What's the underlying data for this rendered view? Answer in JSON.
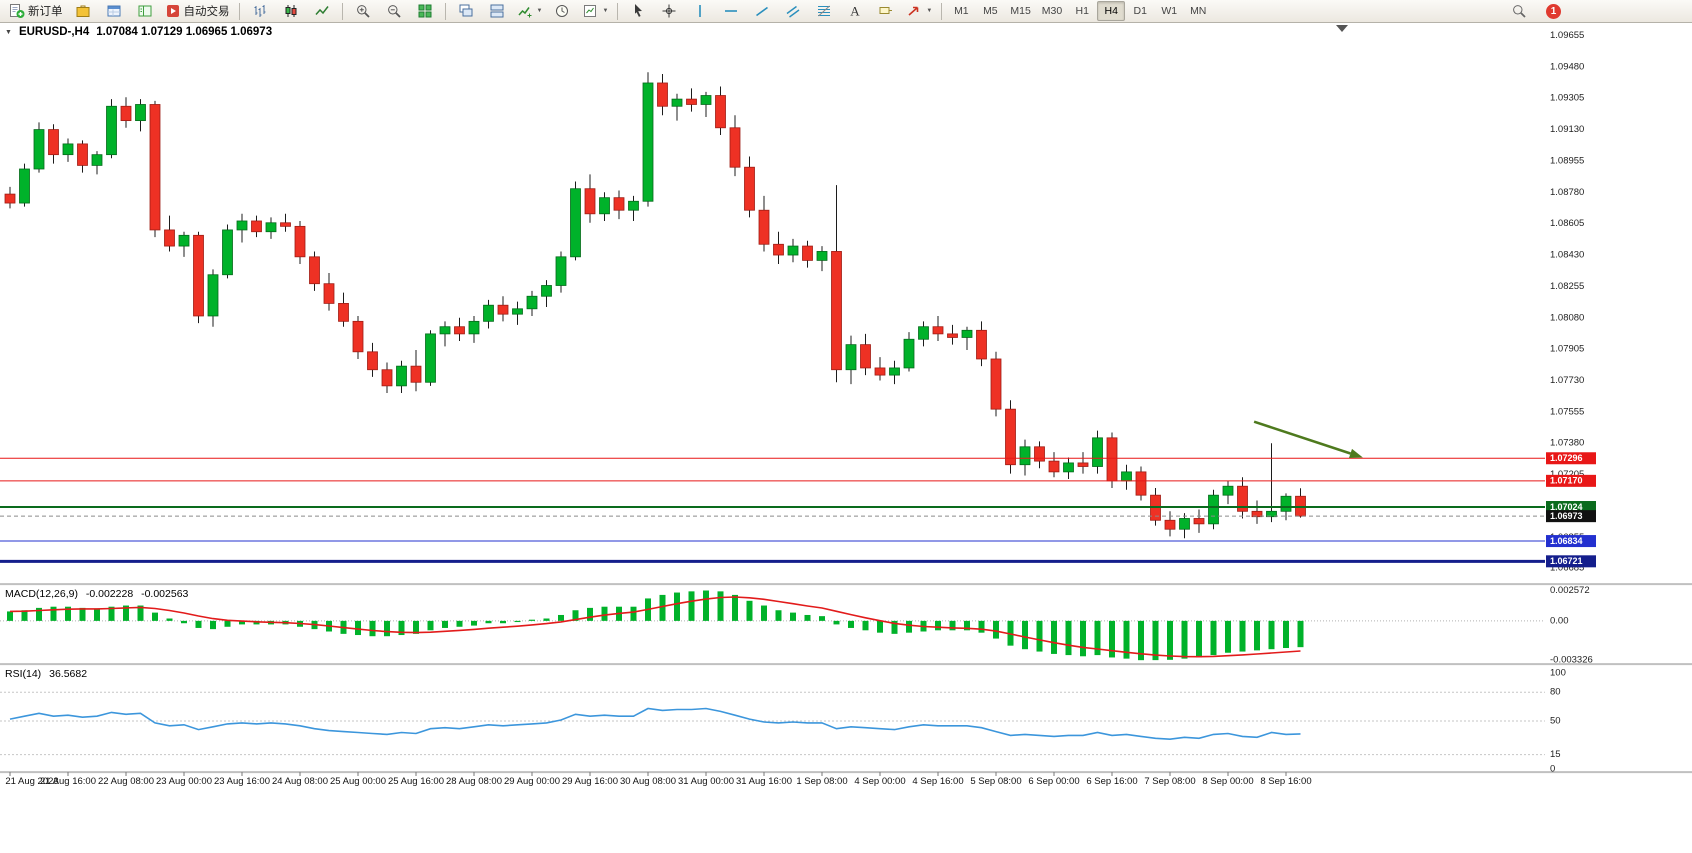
{
  "toolbar": {
    "new_order_label": "新订单",
    "autotrade_label": "自动交易",
    "timeframes": [
      "M1",
      "M5",
      "M15",
      "M30",
      "H1",
      "H4",
      "D1",
      "W1",
      "MN"
    ],
    "active_timeframe": "H4",
    "notification_count": "1"
  },
  "chart": {
    "title_symbol": "EURUSD-,H4",
    "title_ohlc": "1.07084 1.07129 1.06965 1.06973"
  },
  "chart_data": {
    "type": "candlestick",
    "symbol": "EURUSD",
    "timeframe": "H4",
    "x_label_step": 4,
    "x_labels": [
      "21 Aug 2023",
      "21 Aug 16:00",
      "22 Aug 08:00",
      "23 Aug 00:00",
      "23 Aug 16:00",
      "24 Aug 08:00",
      "25 Aug 00:00",
      "25 Aug 16:00",
      "28 Aug 08:00",
      "29 Aug 00:00",
      "29 Aug 16:00",
      "30 Aug 08:00",
      "31 Aug 00:00",
      "31 Aug 16:00",
      "1 Sep 08:00",
      "4 Sep 00:00",
      "4 Sep 16:00",
      "5 Sep 08:00",
      "6 Sep 00:00",
      "6 Sep 16:00",
      "7 Sep 08:00",
      "8 Sep 00:00",
      "8 Sep 16:00"
    ],
    "price_axis": {
      "min": 1.066,
      "max": 1.0968,
      "ticks": [
        "1.09655",
        "1.09480",
        "1.09305",
        "1.09130",
        "1.08955",
        "1.08780",
        "1.08605",
        "1.08430",
        "1.08255",
        "1.08080",
        "1.07905",
        "1.07730",
        "1.07555",
        "1.07380",
        "1.07205",
        "1.07030",
        "1.06855",
        "1.06685"
      ]
    },
    "colors": {
      "up": "#00b22a",
      "down": "#ee3124",
      "wick": "#1c1c1c",
      "macd_histogram": "#00b22a",
      "macd_signal": "#e21b1b",
      "rsi_line": "#3c96dc",
      "arrow": "#4e7a1e",
      "background": "#ffffff"
    },
    "candles": [
      [
        1.0877,
        1.0881,
        1.0869,
        1.0872
      ],
      [
        1.0872,
        1.0894,
        1.087,
        1.0891
      ],
      [
        1.0891,
        1.0917,
        1.0889,
        1.0913
      ],
      [
        1.0913,
        1.0916,
        1.0894,
        1.0899
      ],
      [
        1.0899,
        1.0908,
        1.0895,
        1.0905
      ],
      [
        1.0905,
        1.0907,
        1.0889,
        1.0893
      ],
      [
        1.0893,
        1.0901,
        1.0888,
        1.0899
      ],
      [
        1.0899,
        1.093,
        1.0897,
        1.0926
      ],
      [
        1.0926,
        1.0931,
        1.0914,
        1.0918
      ],
      [
        1.0918,
        1.093,
        1.0912,
        1.0927
      ],
      [
        1.0927,
        1.0929,
        1.0853,
        1.0857
      ],
      [
        1.0857,
        1.0865,
        1.0845,
        1.0848
      ],
      [
        1.0848,
        1.0856,
        1.0842,
        1.0854
      ],
      [
        1.0854,
        1.0856,
        1.0805,
        1.0809
      ],
      [
        1.0809,
        1.0835,
        1.0803,
        1.0832
      ],
      [
        1.0832,
        1.086,
        1.083,
        1.0857
      ],
      [
        1.0857,
        1.0866,
        1.085,
        1.0862
      ],
      [
        1.0862,
        1.0865,
        1.0853,
        1.0856
      ],
      [
        1.0856,
        1.0864,
        1.0852,
        1.0861
      ],
      [
        1.0861,
        1.0866,
        1.0856,
        1.0859
      ],
      [
        1.0859,
        1.0862,
        1.0838,
        1.0842
      ],
      [
        1.0842,
        1.0845,
        1.0823,
        1.0827
      ],
      [
        1.0827,
        1.0833,
        1.0812,
        1.0816
      ],
      [
        1.0816,
        1.0822,
        1.0803,
        1.0806
      ],
      [
        1.0806,
        1.0809,
        1.0785,
        1.0789
      ],
      [
        1.0789,
        1.0794,
        1.0775,
        1.0779
      ],
      [
        1.0779,
        1.0783,
        1.0766,
        1.077
      ],
      [
        1.077,
        1.0784,
        1.0766,
        1.0781
      ],
      [
        1.0781,
        1.079,
        1.0767,
        1.0772
      ],
      [
        1.0772,
        1.0801,
        1.077,
        1.0799
      ],
      [
        1.0799,
        1.0806,
        1.0792,
        1.0803
      ],
      [
        1.0803,
        1.0808,
        1.0795,
        1.0799
      ],
      [
        1.0799,
        1.0809,
        1.0794,
        1.0806
      ],
      [
        1.0806,
        1.0818,
        1.0802,
        1.0815
      ],
      [
        1.0815,
        1.082,
        1.0806,
        1.081
      ],
      [
        1.081,
        1.0817,
        1.0804,
        1.0813
      ],
      [
        1.0813,
        1.0823,
        1.0809,
        1.082
      ],
      [
        1.082,
        1.0829,
        1.0814,
        1.0826
      ],
      [
        1.0826,
        1.0845,
        1.0822,
        1.0842
      ],
      [
        1.0842,
        1.0884,
        1.084,
        1.088
      ],
      [
        1.088,
        1.0888,
        1.0861,
        1.0866
      ],
      [
        1.0866,
        1.0878,
        1.0862,
        1.0875
      ],
      [
        1.0875,
        1.0879,
        1.0863,
        1.0868
      ],
      [
        1.0868,
        1.0876,
        1.0862,
        1.0873
      ],
      [
        1.0873,
        1.0945,
        1.087,
        1.0939
      ],
      [
        1.0939,
        1.0944,
        1.0921,
        1.0926
      ],
      [
        1.0926,
        1.0933,
        1.0918,
        1.093
      ],
      [
        1.093,
        1.0936,
        1.0923,
        1.0927
      ],
      [
        1.0927,
        1.0934,
        1.092,
        1.0932
      ],
      [
        1.0932,
        1.0937,
        1.091,
        1.0914
      ],
      [
        1.0914,
        1.0921,
        1.0887,
        1.0892
      ],
      [
        1.0892,
        1.0898,
        1.0864,
        1.0868
      ],
      [
        1.0868,
        1.0876,
        1.0845,
        1.0849
      ],
      [
        1.0849,
        1.0856,
        1.0838,
        1.0843
      ],
      [
        1.0843,
        1.0852,
        1.0839,
        1.0848
      ],
      [
        1.0848,
        1.0851,
        1.0836,
        1.084
      ],
      [
        1.084,
        1.0848,
        1.0834,
        1.0845
      ],
      [
        1.0845,
        1.0882,
        1.0772,
        1.0779
      ],
      [
        1.0779,
        1.0798,
        1.0771,
        1.0793
      ],
      [
        1.0793,
        1.0799,
        1.0776,
        1.078
      ],
      [
        1.078,
        1.0786,
        1.0773,
        1.0776
      ],
      [
        1.0776,
        1.0784,
        1.0771,
        1.078
      ],
      [
        1.078,
        1.08,
        1.0778,
        1.0796
      ],
      [
        1.0796,
        1.0806,
        1.0792,
        1.0803
      ],
      [
        1.0803,
        1.0809,
        1.0795,
        1.0799
      ],
      [
        1.0799,
        1.0804,
        1.0793,
        1.0797
      ],
      [
        1.0797,
        1.0803,
        1.079,
        1.0801
      ],
      [
        1.0801,
        1.0806,
        1.0781,
        1.0785
      ],
      [
        1.0785,
        1.0789,
        1.0753,
        1.0757
      ],
      [
        1.0757,
        1.0762,
        1.0721,
        1.0726
      ],
      [
        1.0726,
        1.074,
        1.072,
        1.0736
      ],
      [
        1.0736,
        1.0739,
        1.0724,
        1.0728
      ],
      [
        1.0728,
        1.0733,
        1.0719,
        1.0722
      ],
      [
        1.0722,
        1.073,
        1.0718,
        1.0727
      ],
      [
        1.0727,
        1.0733,
        1.0721,
        1.0725
      ],
      [
        1.0725,
        1.0745,
        1.0721,
        1.0741
      ],
      [
        1.0741,
        1.0744,
        1.0713,
        1.0717
      ],
      [
        1.0717,
        1.0726,
        1.0712,
        1.0722
      ],
      [
        1.0722,
        1.0725,
        1.0706,
        1.0709
      ],
      [
        1.0709,
        1.0713,
        1.0692,
        1.0695
      ],
      [
        1.0695,
        1.07,
        1.0686,
        1.069
      ],
      [
        1.069,
        1.0699,
        1.0685,
        1.0696
      ],
      [
        1.0696,
        1.0701,
        1.0688,
        1.0693
      ],
      [
        1.0693,
        1.0712,
        1.069,
        1.0709
      ],
      [
        1.0709,
        1.0717,
        1.0704,
        1.0714
      ],
      [
        1.0714,
        1.0719,
        1.0696,
        1.07
      ],
      [
        1.07,
        1.0706,
        1.0693,
        1.0697
      ],
      [
        1.0697,
        1.0738,
        1.0694,
        1.07
      ],
      [
        1.07,
        1.071,
        1.0695,
        1.07084
      ],
      [
        1.07084,
        1.07129,
        1.06965,
        1.06973
      ]
    ],
    "lines": [
      {
        "price": 1.07296,
        "label": "1.07296",
        "color": "#e81717",
        "width": 1,
        "style": "solid"
      },
      {
        "price": 1.0717,
        "label": "1.07170",
        "color": "#e81717",
        "width": 1,
        "style": "solid"
      },
      {
        "price": 1.07024,
        "label": "1.07024",
        "color": "#0a6b1d",
        "width": 2,
        "style": "solid"
      },
      {
        "price": 1.06834,
        "label": "1.06834",
        "color": "#2330cf",
        "width": 1,
        "style": "solid"
      },
      {
        "price": 1.06721,
        "label": "1.06721",
        "color": "#141e8c",
        "width": 3,
        "style": "solid"
      }
    ],
    "bid": {
      "price": 1.06973,
      "label": "1.06973",
      "color": "#111111"
    },
    "arrow": {
      "from_index": 85.8,
      "from_price": 1.075,
      "to_index": 93.3,
      "to_price": 1.073
    },
    "indicators": {
      "macd": {
        "name": "MACD(12,26,9)",
        "value_main": "-0.002228",
        "value_signal": "-0.002563",
        "axis_labels": [
          "0.002572",
          "0.00",
          "-0.003326"
        ],
        "axis_values": [
          0.002572,
          0,
          -0.003326
        ],
        "range": [
          -0.0034,
          0.0027
        ],
        "histogram": [
          0.0008,
          0.0009,
          0.0011,
          0.0012,
          0.0012,
          0.0011,
          0.001,
          0.0012,
          0.0013,
          0.0013,
          0.0007,
          0.0002,
          -0.0002,
          -0.0006,
          -0.0007,
          -0.0005,
          -0.0003,
          -0.0003,
          -0.0003,
          -0.0003,
          -0.0005,
          -0.0007,
          -0.0009,
          -0.0011,
          -0.0012,
          -0.0013,
          -0.0013,
          -0.0012,
          -0.0011,
          -0.0008,
          -0.0006,
          -0.0005,
          -0.0004,
          -0.0002,
          -0.0002,
          -0.0001,
          0.0001,
          0.0002,
          0.0005,
          0.0009,
          0.0011,
          0.0012,
          0.0012,
          0.0012,
          0.0019,
          0.0022,
          0.0024,
          0.0025,
          0.002572,
          0.0025,
          0.0022,
          0.0017,
          0.0013,
          0.0009,
          0.0007,
          0.0005,
          0.0004,
          -0.0003,
          -0.0006,
          -0.0008,
          -0.001,
          -0.0011,
          -0.001,
          -0.0009,
          -0.0008,
          -0.0008,
          -0.0008,
          -0.001,
          -0.0015,
          -0.0021,
          -0.0024,
          -0.0026,
          -0.0028,
          -0.0029,
          -0.003,
          -0.0029,
          -0.0031,
          -0.0032,
          -0.00333,
          -0.003326,
          -0.0033,
          -0.0032,
          -0.0031,
          -0.0029,
          -0.0027,
          -0.0026,
          -0.0025,
          -0.0024,
          -0.0023,
          -0.002228
        ]
      },
      "rsi": {
        "name": "RSI(14)",
        "value": "36.5682",
        "axis_labels": [
          "100",
          "80",
          "50",
          "15",
          "0"
        ],
        "axis_values": [
          100,
          80,
          50,
          15,
          0
        ],
        "levels": [
          80,
          50,
          15
        ],
        "range": [
          0,
          100
        ],
        "values": [
          52,
          55,
          58,
          55,
          56,
          54,
          55,
          59,
          57,
          58,
          48,
          45,
          46,
          41,
          44,
          47,
          48,
          47,
          48,
          47,
          45,
          42,
          40,
          39,
          38,
          37,
          36,
          38,
          37,
          42,
          43,
          42,
          44,
          46,
          45,
          46,
          47,
          48,
          51,
          57,
          55,
          56,
          55,
          55,
          63,
          61,
          62,
          62,
          63,
          60,
          56,
          52,
          49,
          48,
          49,
          48,
          48,
          42,
          44,
          43,
          42,
          41,
          44,
          46,
          45,
          45,
          45,
          43,
          39,
          35,
          36,
          35,
          34,
          35,
          35,
          38,
          35,
          36,
          34,
          32,
          31,
          33,
          32,
          36,
          37,
          34,
          33,
          38,
          36,
          36.57
        ]
      }
    }
  }
}
